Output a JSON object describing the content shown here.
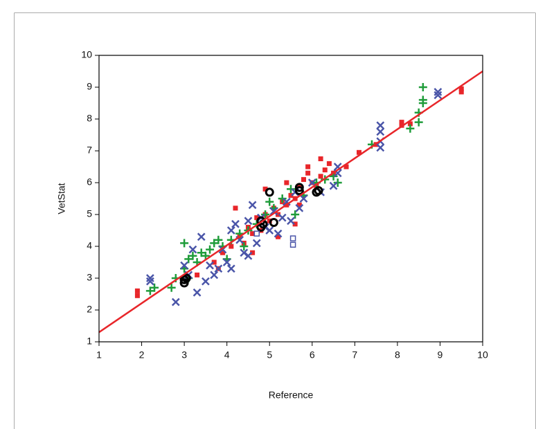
{
  "chart_data": {
    "type": "scatter",
    "x_label": "Reference",
    "y_label": "VetStat",
    "xlim": [
      1,
      10
    ],
    "ylim": [
      1,
      10
    ],
    "xticks": [
      1,
      2,
      3,
      4,
      5,
      6,
      7,
      8,
      9,
      10
    ],
    "yticks": [
      1,
      2,
      3,
      4,
      5,
      6,
      7,
      8,
      9,
      10
    ],
    "grid": false,
    "series": [
      {
        "color": "#e8262a",
        "marker": "square",
        "x": [
          1.9,
          1.9,
          3.3,
          3.7,
          3.9,
          4.1,
          4.3,
          4.4,
          4.5,
          4.6,
          4.7,
          4.8,
          4.9,
          5.0,
          5.1,
          5.2,
          5.3,
          5.4,
          5.5,
          5.6,
          5.7,
          5.8,
          5.9,
          6.0,
          6.1,
          6.2,
          6.3,
          6.4,
          6.5,
          6.8,
          7.1,
          7.5,
          8.1,
          8.1,
          8.3,
          9.5,
          9.5,
          4.2,
          5.4,
          5.6,
          6.2,
          5.2,
          4.6,
          3.8,
          5.9,
          4.9,
          5.7
        ],
        "y": [
          2.6,
          2.45,
          3.1,
          3.5,
          3.8,
          4.0,
          4.3,
          4.1,
          4.6,
          4.4,
          4.9,
          4.5,
          5.0,
          4.8,
          5.2,
          5.0,
          5.4,
          5.3,
          5.6,
          5.5,
          5.9,
          6.1,
          6.3,
          6.0,
          5.9,
          6.2,
          6.4,
          6.6,
          6.3,
          6.5,
          6.95,
          7.2,
          7.8,
          7.9,
          7.85,
          8.85,
          8.95,
          5.2,
          6.0,
          4.7,
          6.75,
          4.3,
          3.8,
          3.3,
          6.5,
          5.8,
          5.3
        ]
      },
      {
        "color": "#1f9c3a",
        "marker": "plus",
        "x": [
          2.2,
          2.3,
          2.7,
          2.8,
          3.0,
          3.0,
          3.1,
          3.2,
          3.3,
          3.4,
          3.5,
          3.6,
          3.7,
          3.8,
          3.9,
          4.0,
          4.1,
          4.3,
          4.5,
          4.7,
          4.9,
          5.0,
          5.1,
          5.3,
          5.5,
          5.6,
          5.8,
          6.1,
          6.3,
          6.5,
          6.6,
          7.4,
          8.3,
          8.5,
          8.5,
          8.6,
          8.6,
          8.6,
          3.1,
          4.4
        ],
        "y": [
          2.6,
          2.7,
          2.7,
          3.0,
          3.3,
          4.1,
          3.6,
          3.7,
          3.5,
          3.8,
          3.7,
          3.9,
          4.1,
          4.2,
          4.0,
          3.6,
          4.2,
          4.4,
          4.5,
          4.7,
          5.0,
          5.4,
          5.2,
          5.5,
          5.8,
          5.0,
          5.6,
          6.0,
          6.1,
          6.2,
          6.0,
          7.2,
          7.7,
          7.9,
          8.2,
          8.5,
          8.6,
          9.0,
          3.0,
          4.0
        ]
      },
      {
        "color": "#4a55a8",
        "marker": "cross",
        "x": [
          2.2,
          2.2,
          2.8,
          3.0,
          3.1,
          3.3,
          3.4,
          3.5,
          3.6,
          3.7,
          3.8,
          3.9,
          4.0,
          4.1,
          4.2,
          4.3,
          4.4,
          4.5,
          4.6,
          4.7,
          4.8,
          4.9,
          5.0,
          5.1,
          5.3,
          5.4,
          5.5,
          5.6,
          5.8,
          6.0,
          6.2,
          6.5,
          6.6,
          6.6,
          7.6,
          7.6,
          7.6,
          7.6,
          8.95,
          8.95,
          3.2,
          4.1,
          5.2,
          5.7,
          4.5
        ],
        "y": [
          3.0,
          2.9,
          2.25,
          3.4,
          3.1,
          2.55,
          4.3,
          2.9,
          3.4,
          3.1,
          3.3,
          3.9,
          3.5,
          4.5,
          4.7,
          4.2,
          3.8,
          4.8,
          5.3,
          4.1,
          4.9,
          4.6,
          4.5,
          5.1,
          4.9,
          5.4,
          4.8,
          5.7,
          5.5,
          6.0,
          5.7,
          5.9,
          6.5,
          6.3,
          7.1,
          7.3,
          7.6,
          7.8,
          8.75,
          8.85,
          3.9,
          3.3,
          4.4,
          5.2,
          3.7
        ]
      },
      {
        "color": "#000000",
        "marker": "circle",
        "x": [
          3.0,
          3.0,
          3.05,
          4.8,
          4.8,
          4.85,
          5.0,
          5.7,
          5.7,
          6.1,
          6.15,
          5.1
        ],
        "y": [
          2.85,
          2.95,
          3.0,
          4.6,
          4.8,
          4.7,
          5.7,
          5.75,
          5.85,
          5.7,
          5.75,
          4.75
        ]
      },
      {
        "color": "#4a55a8",
        "marker": "square-open",
        "x": [
          5.55,
          5.55,
          4.7
        ],
        "y": [
          4.05,
          4.25,
          4.4
        ]
      }
    ],
    "fit_line": {
      "color": "#e8262a",
      "x": [
        1,
        10
      ],
      "y": [
        1.3,
        9.5
      ]
    }
  }
}
